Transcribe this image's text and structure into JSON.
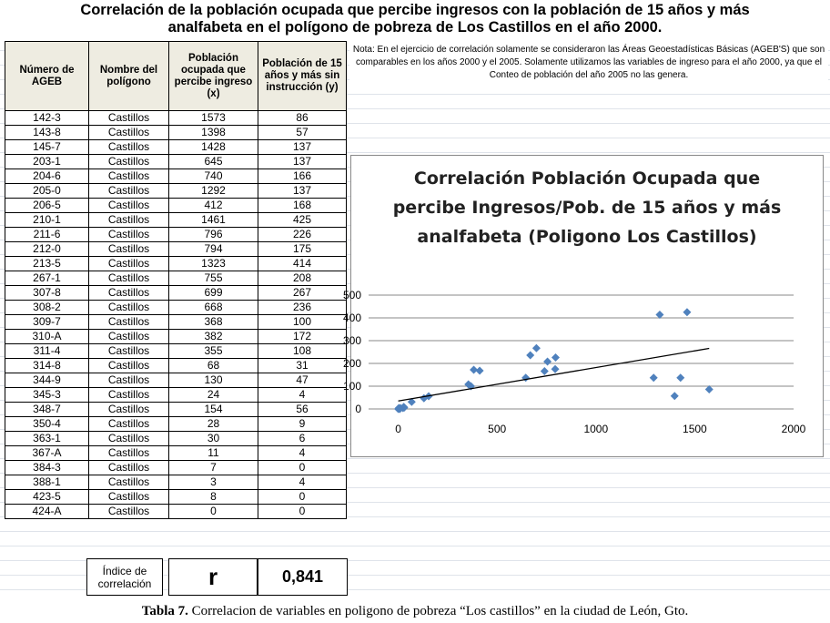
{
  "header": {
    "title_line1": "Correlación de la población ocupada que percibe ingresos con la población de 15 años y más",
    "title_line2": "analfabeta en el polígono de pobreza de Los Castillos en el año 2000."
  },
  "table": {
    "headers": [
      "Número de AGEB",
      "Nombre del polígono",
      "Población ocupada que percibe ingreso (x)",
      "Población de 15 años y más sin instrucción (y)"
    ],
    "rows": [
      [
        "142-3",
        "Castillos",
        1573,
        86
      ],
      [
        "143-8",
        "Castillos",
        1398,
        57
      ],
      [
        "145-7",
        "Castillos",
        1428,
        137
      ],
      [
        "203-1",
        "Castillos",
        645,
        137
      ],
      [
        "204-6",
        "Castillos",
        740,
        166
      ],
      [
        "205-0",
        "Castillos",
        1292,
        137
      ],
      [
        "206-5",
        "Castillos",
        412,
        168
      ],
      [
        "210-1",
        "Castillos",
        1461,
        425
      ],
      [
        "211-6",
        "Castillos",
        796,
        226
      ],
      [
        "212-0",
        "Castillos",
        794,
        175
      ],
      [
        "213-5",
        "Castillos",
        1323,
        414
      ],
      [
        "267-1",
        "Castillos",
        755,
        208
      ],
      [
        "307-8",
        "Castillos",
        699,
        267
      ],
      [
        "308-2",
        "Castillos",
        668,
        236
      ],
      [
        "309-7",
        "Castillos",
        368,
        100
      ],
      [
        "310-A",
        "Castillos",
        382,
        172
      ],
      [
        "311-4",
        "Castillos",
        355,
        108
      ],
      [
        "314-8",
        "Castillos",
        68,
        31
      ],
      [
        "344-9",
        "Castillos",
        130,
        47
      ],
      [
        "345-3",
        "Castillos",
        24,
        4
      ],
      [
        "348-7",
        "Castillos",
        154,
        56
      ],
      [
        "350-4",
        "Castillos",
        28,
        9
      ],
      [
        "363-1",
        "Castillos",
        30,
        6
      ],
      [
        "367-A",
        "Castillos",
        11,
        4
      ],
      [
        "384-3",
        "Castillos",
        7,
        0
      ],
      [
        "388-1",
        "Castillos",
        3,
        4
      ],
      [
        "423-5",
        "Castillos",
        8,
        0
      ],
      [
        "424-A",
        "Castillos",
        0,
        0
      ]
    ]
  },
  "note": "Nota: En el ejercicio de correlación solamente se consideraron las Áreas Geoestadísticas Básicas (AGEB'S) que son comparables en los años 2000 y el 2005. Solamente utilizamos las variables de ingreso para el año 2000, ya que el Conteo de población del año 2005 no las genera.",
  "footer": {
    "label": "Índice de correlación",
    "symbol": "r",
    "value": "0,841"
  },
  "caption": {
    "label": "Tabla 7.",
    "text": "Correlacion de variables en poligono de pobreza “Los castillos” en la ciudad de León, Gto."
  },
  "chart_data": {
    "type": "scatter",
    "title": "Correlación Población Ocupada que percibe Ingresos/Pob. de 15 años y más analfabeta (Poligono Los Castillos)",
    "color": "#4f81bd",
    "xlim": [
      -150,
      2000
    ],
    "ylim": [
      0,
      500
    ],
    "xticks": [
      0,
      500,
      1000,
      1500,
      2000
    ],
    "yticks": [
      0,
      100,
      200,
      300,
      400,
      500
    ],
    "grid": true,
    "trendline": {
      "x": [
        0,
        1573
      ],
      "y": [
        35,
        266
      ]
    }
  }
}
